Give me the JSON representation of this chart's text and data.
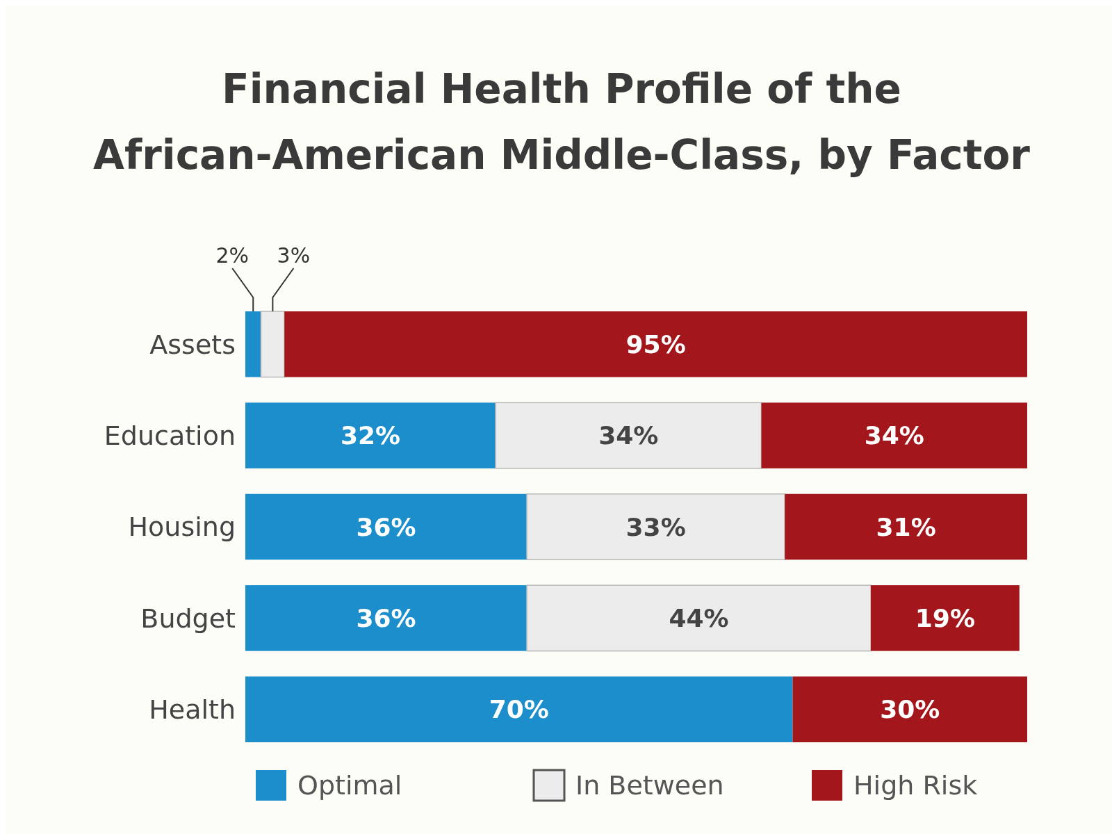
{
  "chart_data": {
    "type": "bar",
    "title": "Financial Health Profile of the African-American Middle-Class, by Factor",
    "orientation": "horizontal",
    "stacked": true,
    "categories": [
      "Assets",
      "Education",
      "Housing",
      "Budget",
      "Health"
    ],
    "xlim": [
      0,
      100
    ],
    "tick_labels": "y",
    "legend": "bottom",
    "series": [
      {
        "name": "Optimal",
        "color": "#1b8ecb",
        "values": [
          2,
          32,
          36,
          36,
          70
        ],
        "value_labels": [
          "2%",
          "32%",
          "36%",
          "36%",
          "70%"
        ]
      },
      {
        "name": "In Between",
        "color": "#ececec",
        "values": [
          3,
          34,
          33,
          44,
          null
        ],
        "value_labels": [
          "3%",
          "34%",
          "33%",
          "44%",
          null
        ]
      },
      {
        "name": "High Risk",
        "color": "#a3171c",
        "values": [
          95,
          34,
          31,
          19,
          30
        ],
        "value_labels": [
          "95%",
          "34%",
          "31%",
          "19%",
          "30%"
        ]
      }
    ]
  }
}
